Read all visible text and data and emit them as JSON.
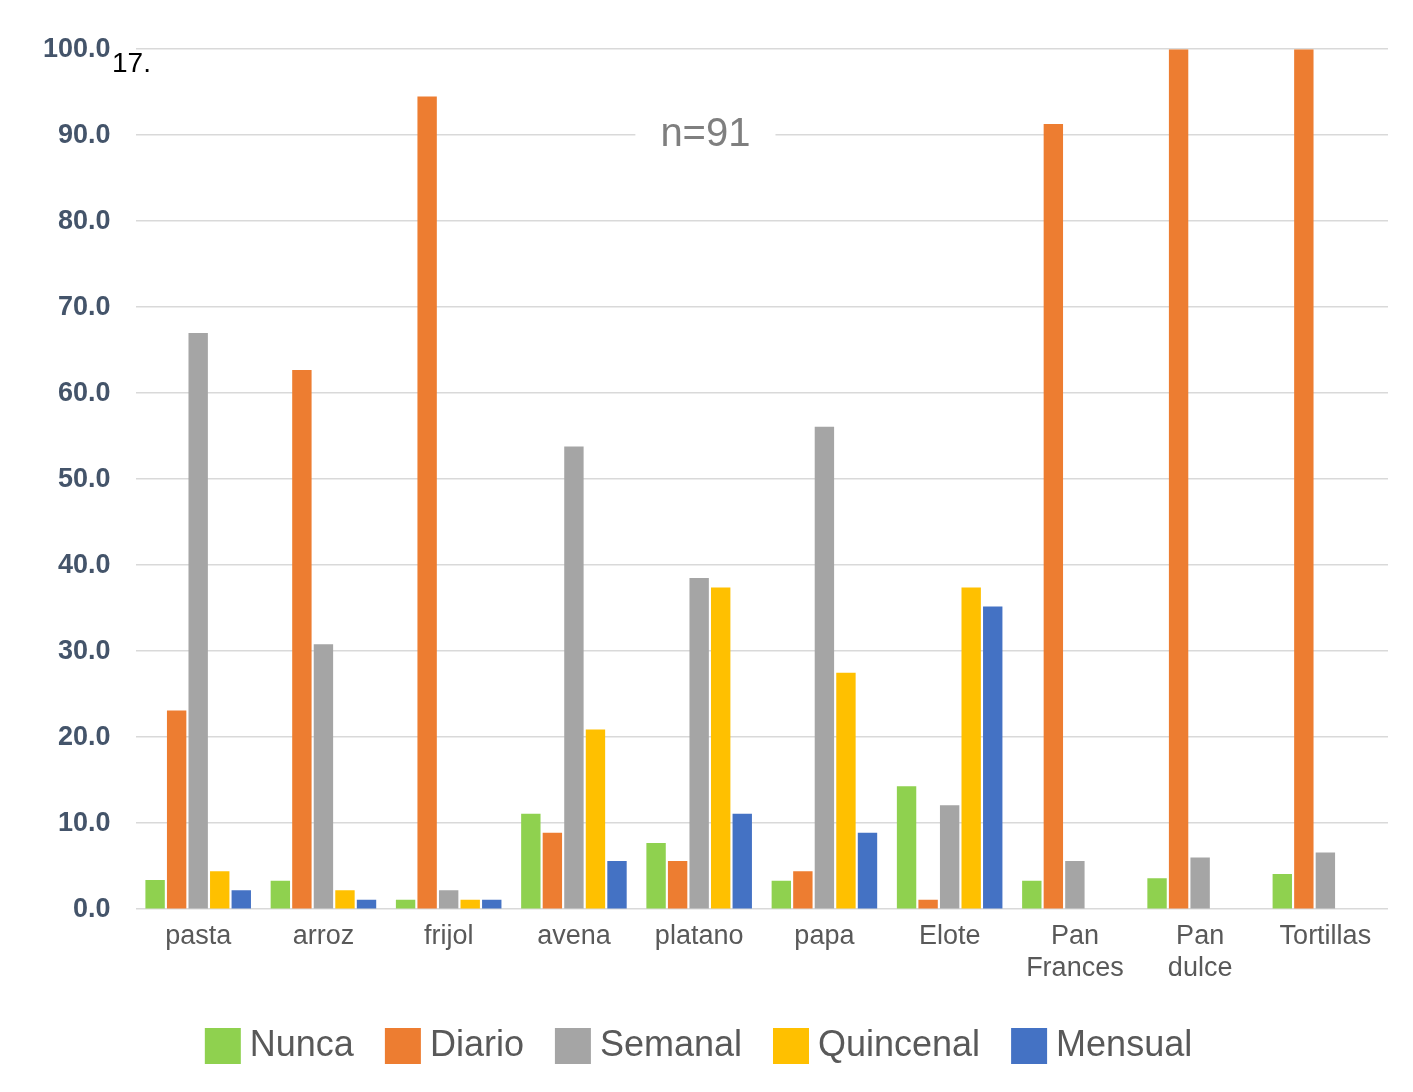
{
  "chart_data": {
    "type": "bar",
    "categories": [
      "pasta",
      "arroz",
      "frijol",
      "avena",
      "platano",
      "papa",
      "Elote",
      "Pan Frances",
      "Pan dulce",
      "Tortillas"
    ],
    "series": [
      {
        "name": "Nunca",
        "color": "#8fd14f",
        "values": [
          3.4,
          3.3,
          1.1,
          11.1,
          7.7,
          3.3,
          14.3,
          3.3,
          3.6,
          4.1
        ]
      },
      {
        "name": "Diario",
        "color": "#ed7d31",
        "values": [
          23.1,
          62.7,
          94.5,
          8.9,
          5.6,
          4.4,
          1.1,
          91.3,
          100,
          100
        ]
      },
      {
        "name": "Semanal",
        "color": "#a5a5a5",
        "values": [
          67.0,
          30.8,
          2.2,
          53.8,
          38.5,
          56.1,
          12.1,
          5.6,
          6.0,
          6.6
        ]
      },
      {
        "name": "Quincenal",
        "color": "#ffc000",
        "values": [
          4.4,
          2.2,
          1.1,
          20.9,
          37.4,
          27.5,
          37.4,
          null,
          null,
          null
        ]
      },
      {
        "name": "Mensual",
        "color": "#4472c4",
        "values": [
          2.2,
          1.1,
          1.1,
          5.6,
          11.1,
          8.9,
          35.2,
          null,
          null,
          null
        ]
      }
    ],
    "ylim": [
      0,
      100
    ],
    "yticks": [
      {
        "value": 0,
        "label": "0.0"
      },
      {
        "value": 10,
        "label": "10.0"
      },
      {
        "value": 20,
        "label": "20.0"
      },
      {
        "value": 30,
        "label": "30.0"
      },
      {
        "value": 40,
        "label": "40.0"
      },
      {
        "value": 50,
        "label": "50.0"
      },
      {
        "value": 60,
        "label": "60.0"
      },
      {
        "value": 70,
        "label": "70.0"
      },
      {
        "value": 80,
        "label": "80.0"
      },
      {
        "value": 90,
        "label": "90.0"
      },
      {
        "value": 100,
        "label": "100.0"
      }
    ],
    "grid": "y",
    "legend": "bottom",
    "annotations": [
      "17.",
      "n=91"
    ]
  }
}
